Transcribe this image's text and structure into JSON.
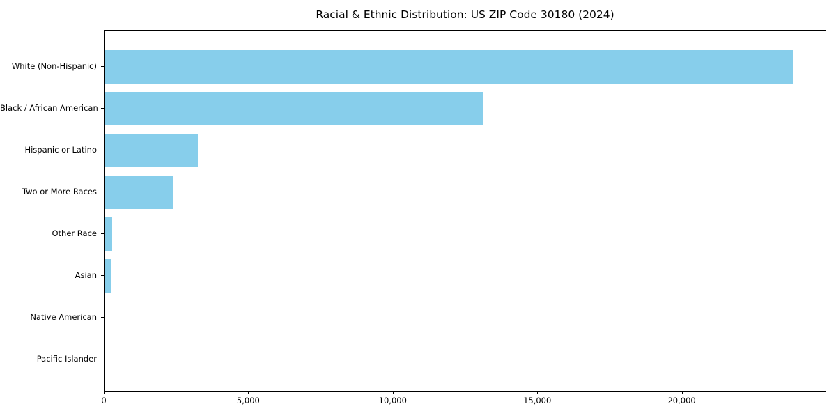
{
  "chart_data": {
    "type": "bar",
    "orientation": "horizontal",
    "title": "Racial & Ethnic Distribution: US ZIP Code 30180 (2024)",
    "categories": [
      "White (Non-Hispanic)",
      "Black / African American",
      "Hispanic or Latino",
      "Two or More Races",
      "Other Race",
      "Asian",
      "Native American",
      "Pacific Islander"
    ],
    "values": [
      23830,
      13120,
      3230,
      2360,
      270,
      240,
      25,
      10
    ],
    "xlabel": "",
    "ylabel": "",
    "xlim": [
      0,
      25000
    ],
    "xticks": [
      0,
      5000,
      10000,
      15000,
      20000
    ],
    "xtick_labels": [
      "0",
      "5,000",
      "10,000",
      "15,000",
      "20,000"
    ],
    "bar_color": "#87CEEB",
    "axis_color": "#000000",
    "background_color": "#FFFFFF",
    "grid": false,
    "legend": "none"
  }
}
